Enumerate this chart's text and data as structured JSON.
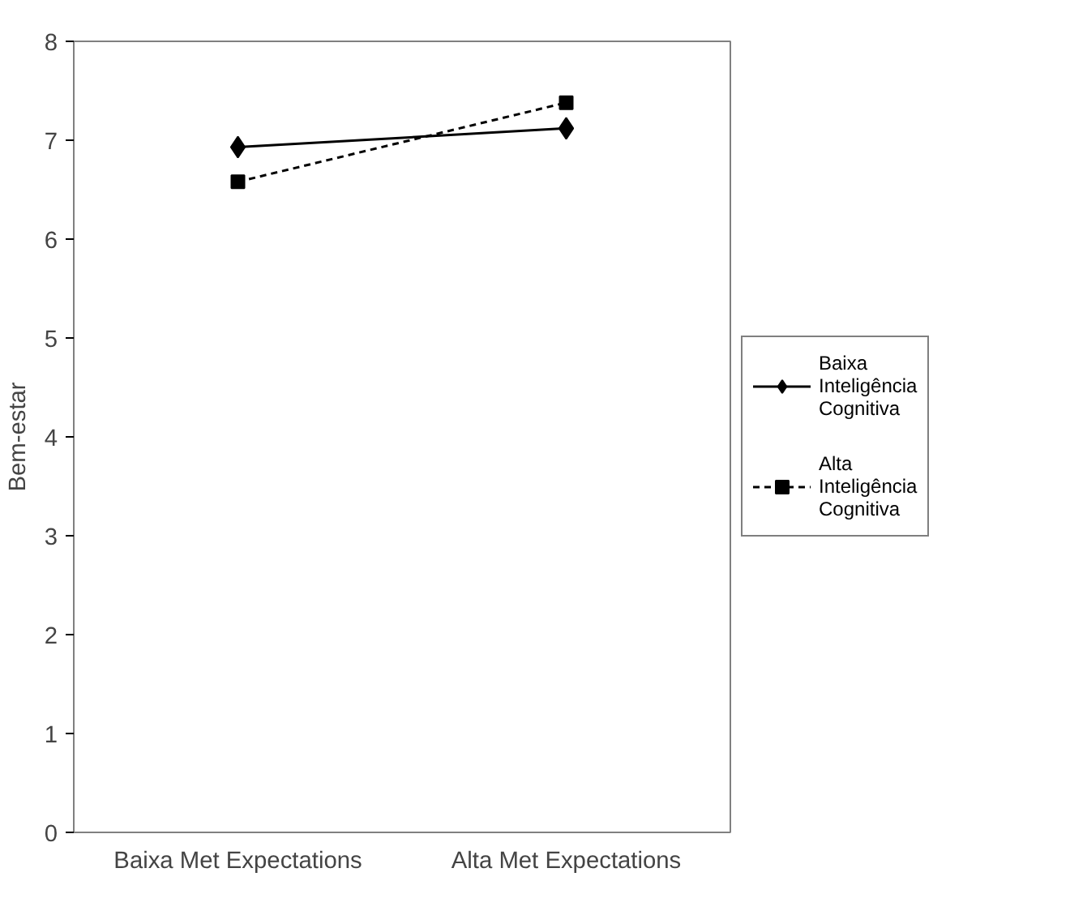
{
  "chart_data": {
    "type": "line",
    "ylabel": "Bem-estar",
    "categories": [
      "Baixa Met Expectations",
      "Alta Met Expectations"
    ],
    "series": [
      {
        "name": "Baixa Inteligência Cognitiva",
        "color": "#000000",
        "values": [
          6.93,
          7.12
        ],
        "marker": "diamond",
        "line_style": "solid"
      },
      {
        "name": "Alta Inteligência Cognitiva",
        "color": "#000000",
        "values": [
          6.58,
          7.38
        ],
        "marker": "square",
        "line_style": "dashed"
      }
    ],
    "ylim": [
      0,
      8
    ],
    "yticks": [
      0,
      1,
      2,
      3,
      4,
      5,
      6,
      7,
      8
    ],
    "grid": false,
    "legend": "right"
  }
}
